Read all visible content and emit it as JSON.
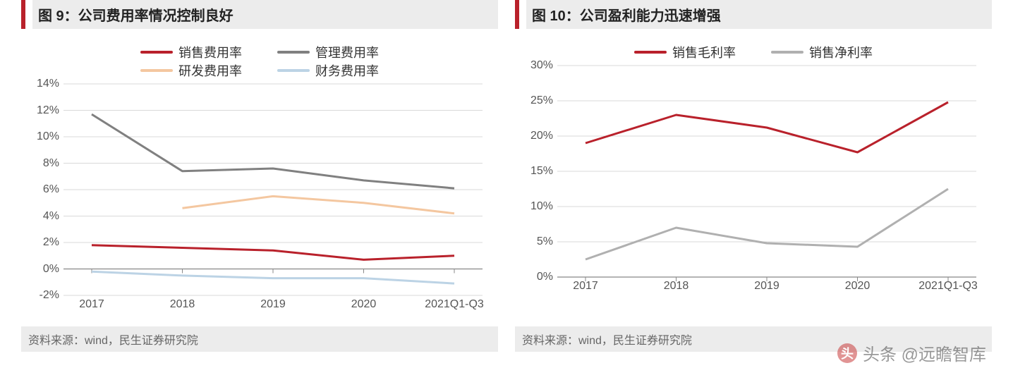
{
  "watermark": {
    "prefix_icon_label": "头",
    "text": "头条 @远瞻智库"
  },
  "chart_left": {
    "type": "line",
    "title": "图 9：公司费用率情况控制良好",
    "source": "资料来源：wind，民生证券研究院",
    "categories": [
      "2017",
      "2018",
      "2019",
      "2020",
      "2021Q1-Q3"
    ],
    "y_min": -2,
    "y_max": 14,
    "y_step": 2,
    "y_suffix": "%",
    "grid_color": "#d9d9d9",
    "axis_color": "#888888",
    "background_color": "#ffffff",
    "label_fontsize": 16,
    "title_fontsize": 20,
    "line_width": 3,
    "legend_rows": 2,
    "series": [
      {
        "name": "销售费用率",
        "color": "#b9212b",
        "values": [
          1.8,
          1.6,
          1.4,
          0.7,
          1.0
        ]
      },
      {
        "name": "管理费用率",
        "color": "#808080",
        "values": [
          11.7,
          7.4,
          7.6,
          6.7,
          6.1
        ]
      },
      {
        "name": "研发费用率",
        "color": "#f4c7a0",
        "values": [
          null,
          4.6,
          5.5,
          5.0,
          4.2
        ]
      },
      {
        "name": "财务费用率",
        "color": "#bcd3e5",
        "values": [
          -0.2,
          -0.5,
          -0.7,
          -0.7,
          -1.1
        ]
      }
    ]
  },
  "chart_right": {
    "type": "line",
    "title": "图 10：公司盈利能力迅速增强",
    "source": "资料来源：wind，民生证券研究院",
    "categories": [
      "2017",
      "2018",
      "2019",
      "2020",
      "2021Q1-Q3"
    ],
    "y_min": 0,
    "y_max": 30,
    "y_step": 5,
    "y_suffix": "%",
    "grid_color": "#d9d9d9",
    "axis_color": "#888888",
    "background_color": "#ffffff",
    "label_fontsize": 16,
    "title_fontsize": 20,
    "line_width": 3,
    "legend_rows": 1,
    "series": [
      {
        "name": "销售毛利率",
        "color": "#b9212b",
        "values": [
          19.0,
          23.0,
          21.2,
          17.7,
          24.8
        ]
      },
      {
        "name": "销售净利率",
        "color": "#b0b0b0",
        "values": [
          2.5,
          7.0,
          4.8,
          4.3,
          12.5
        ]
      }
    ]
  }
}
